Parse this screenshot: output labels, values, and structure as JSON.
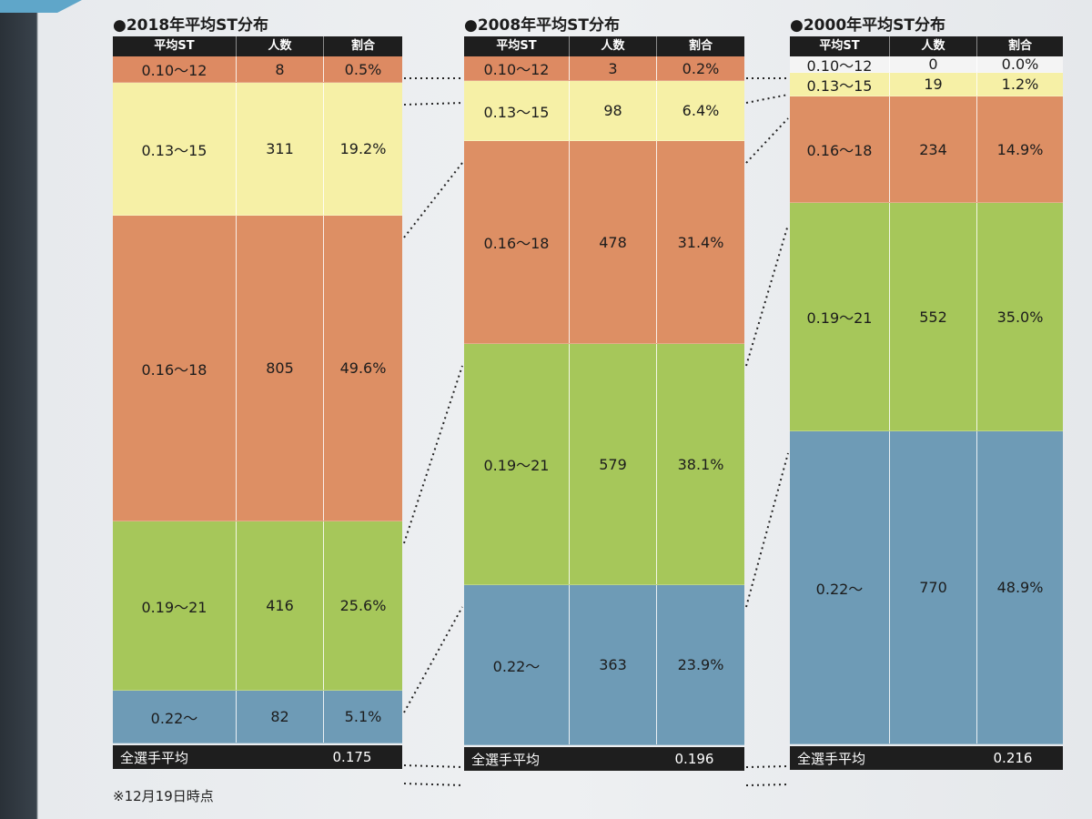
{
  "colors": {
    "0.10〜12": "#dd8a62",
    "0.13〜15": "#f6f0a6",
    "0.16〜18": "#dd8f64",
    "0.19〜21": "#a6c75a",
    "0.22〜": "#6e9bb6",
    "footer_bg": "#1e1e1e",
    "header_bg": "#1e1e1e"
  },
  "chart_data": [
    {
      "type": "table",
      "title": "●2018年平均ST分布",
      "columns": [
        "平均ST",
        "人数",
        "割合"
      ],
      "rows": [
        {
          "range": "0.10〜12",
          "count": "8",
          "pct": "0.5%",
          "share": 0.5
        },
        {
          "range": "0.13〜15",
          "count": "311",
          "pct": "19.2%",
          "share": 19.2
        },
        {
          "range": "0.16〜18",
          "count": "805",
          "pct": "49.6%",
          "share": 49.6
        },
        {
          "range": "0.19〜21",
          "count": "416",
          "pct": "25.6%",
          "share": 25.6
        },
        {
          "range": "0.22〜",
          "count": "82",
          "pct": "5.1%",
          "share": 5.1
        }
      ],
      "footer_label": "全選手平均",
      "footer_value": "0.175"
    },
    {
      "type": "table",
      "title": "●2008年平均ST分布",
      "columns": [
        "平均ST",
        "人数",
        "割合"
      ],
      "rows": [
        {
          "range": "0.10〜12",
          "count": "3",
          "pct": "0.2%",
          "share": 0.2
        },
        {
          "range": "0.13〜15",
          "count": "98",
          "pct": "6.4%",
          "share": 6.4
        },
        {
          "range": "0.16〜18",
          "count": "478",
          "pct": "31.4%",
          "share": 31.4
        },
        {
          "range": "0.19〜21",
          "count": "579",
          "pct": "38.1%",
          "share": 38.1
        },
        {
          "range": "0.22〜",
          "count": "363",
          "pct": "23.9%",
          "share": 23.9
        }
      ],
      "footer_label": "全選手平均",
      "footer_value": "0.196"
    },
    {
      "type": "table",
      "title": "●2000年平均ST分布",
      "columns": [
        "平均ST",
        "人数",
        "割合"
      ],
      "rows": [
        {
          "range": "0.10〜12",
          "count": "0",
          "pct": "0.0%",
          "share": 0.0
        },
        {
          "range": "0.13〜15",
          "count": "19",
          "pct": "1.2%",
          "share": 1.2
        },
        {
          "range": "0.16〜18",
          "count": "234",
          "pct": "14.9%",
          "share": 14.9
        },
        {
          "range": "0.19〜21",
          "count": "552",
          "pct": "35.0%",
          "share": 35.0
        },
        {
          "range": "0.22〜",
          "count": "770",
          "pct": "48.9%",
          "share": 48.9
        }
      ],
      "footer_label": "全選手平均",
      "footer_value": "0.216"
    }
  ],
  "footnote": "※12月19日時点"
}
